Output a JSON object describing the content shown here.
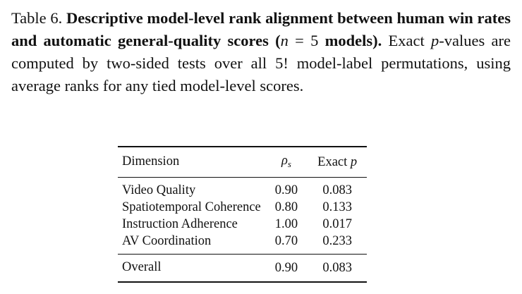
{
  "caption": [
    {
      "text": "Table 6.",
      "style": "normal"
    },
    {
      "text": " Descriptive model-level rank alignment between human win rates and automatic general-quality scores (",
      "style": "bold"
    },
    {
      "text": "n",
      "style": "italic"
    },
    {
      "text": " = 5 ",
      "style": "normal"
    },
    {
      "text": "models).",
      "style": "bold"
    },
    {
      "text": " Exact ",
      "style": "normal"
    },
    {
      "text": "p",
      "style": "italic"
    },
    {
      "text": "-values are computed by two-sided tests over all 5! model-label permutations, using average ranks for any tied model-level scores.",
      "style": "normal"
    }
  ],
  "table": {
    "header": [
      [
        {
          "text": "Dimension",
          "style": "normal"
        }
      ],
      [
        {
          "text": "ρ",
          "style": "italic"
        },
        {
          "text": "s",
          "style": "sub"
        }
      ],
      [
        {
          "text": "Exact ",
          "style": "normal"
        },
        {
          "text": "p",
          "style": "italic"
        }
      ]
    ],
    "rows": [
      [
        "Video Quality",
        "0.90",
        "0.083"
      ],
      [
        "Spatiotemporal Coherence",
        "0.80",
        "0.133"
      ],
      [
        "Instruction Adherence",
        "1.00",
        "0.017"
      ],
      [
        "AV Coordination",
        "0.70",
        "0.233"
      ]
    ],
    "total": [
      "Overall",
      "0.90",
      "0.083"
    ]
  }
}
